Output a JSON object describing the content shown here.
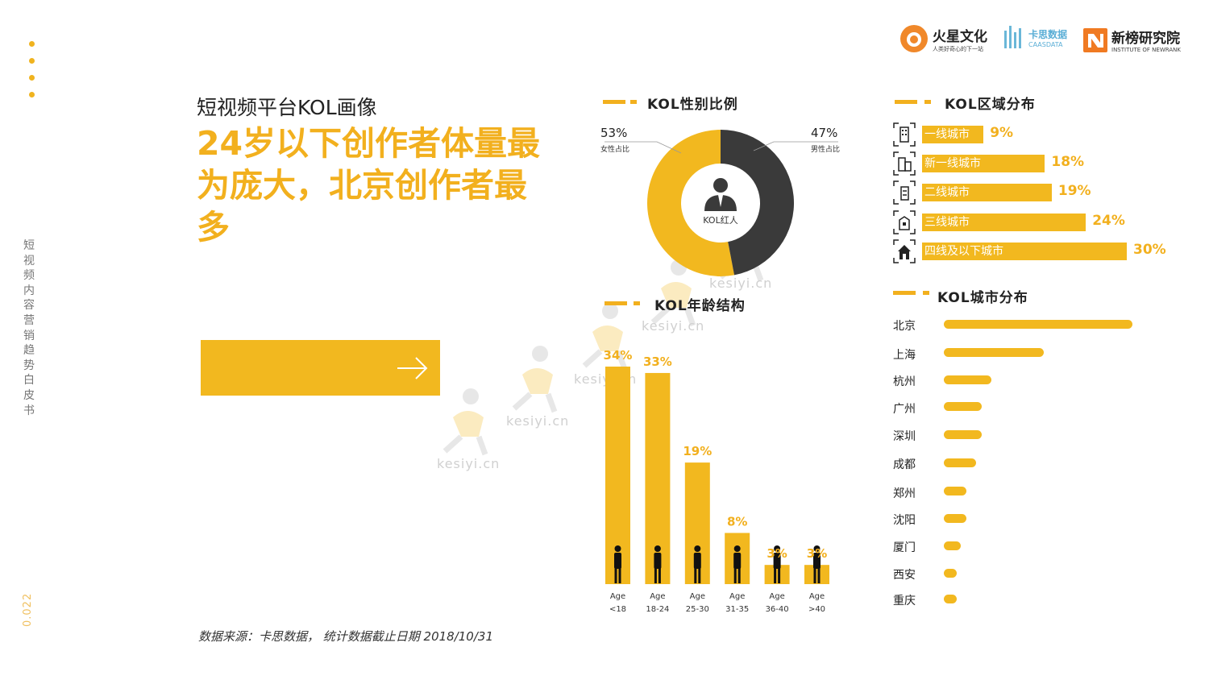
{
  "brand": {
    "logo1_name": "火星文化",
    "logo1_tagline": "人类好奇心的下一站",
    "logo2_name": "卡思数据",
    "logo2_tagline": "CAASDATA",
    "logo3_name": "新榜研究院",
    "logo3_tagline": "INSTITUTE OF NEWRANK"
  },
  "sidebar": {
    "vertical_title": "短视频内容营销趋势白皮书",
    "page_number": "0.022"
  },
  "header": {
    "subtitle": "短视频平台KOL画像",
    "headline": "24岁以下创作者体量最为庞大，北京创作者最多"
  },
  "gender": {
    "section_title": "KOL性别比例",
    "center_label": "KOL红人",
    "female_pct": "53%",
    "female_label": "女性占比",
    "male_pct": "47%",
    "male_label": "男性占比"
  },
  "region": {
    "section_title": "KOL区域分布",
    "items": [
      {
        "label": "一线城市",
        "pct": "9%",
        "value": 9
      },
      {
        "label": "新一线城市",
        "pct": "18%",
        "value": 18
      },
      {
        "label": "二线城市",
        "pct": "19%",
        "value": 19
      },
      {
        "label": "三线城市",
        "pct": "24%",
        "value": 24
      },
      {
        "label": "四线及以下城市",
        "pct": "30%",
        "value": 30
      }
    ]
  },
  "city": {
    "section_title": "KOL城市分布",
    "items": [
      "北京",
      "上海",
      "杭州",
      "广州",
      "深圳",
      "成都",
      "郑州",
      "沈阳",
      "厦门",
      "西安",
      "重庆"
    ]
  },
  "age": {
    "section_title": "KOL年龄结构"
  },
  "watermark": "kesiyi.cn",
  "footer": {
    "source": "数据来源：卡思数据， 统计数据截止日期 2018/10/31"
  },
  "colors": {
    "accent": "#f2b81f",
    "accent_text": "#f2b01e",
    "dark": "#3a3a3a"
  },
  "chart_data": [
    {
      "type": "pie",
      "title": "KOL性别比例",
      "categories": [
        "女性占比",
        "男性占比"
      ],
      "values": [
        53,
        47
      ],
      "colors": [
        "#f2b81f",
        "#3a3a3a"
      ]
    },
    {
      "type": "bar",
      "title": "KOL区域分布",
      "categories": [
        "一线城市",
        "新一线城市",
        "二线城市",
        "三线城市",
        "四线及以下城市"
      ],
      "values": [
        9,
        18,
        19,
        24,
        30
      ],
      "unit": "%"
    },
    {
      "type": "bar",
      "title": "KOL年龄结构",
      "categories": [
        "Age <18",
        "Age 18-24",
        "Age 25-30",
        "Age 31-35",
        "Age 36-40",
        "Age >40"
      ],
      "tick_top": [
        "Age",
        "Age",
        "Age",
        "Age",
        "Age",
        "Age"
      ],
      "tick_bottom": [
        "<18",
        "18-24",
        "25-30",
        "31-35",
        "36-40",
        ">40"
      ],
      "values": [
        34,
        33,
        19,
        8,
        3,
        3
      ],
      "labels": [
        "34%",
        "33%",
        "19%",
        "8%",
        "3%",
        "3%"
      ],
      "ylim": [
        0,
        34
      ]
    },
    {
      "type": "bar",
      "title": "KOL城市分布",
      "categories": [
        "北京",
        "上海",
        "杭州",
        "广州",
        "深圳",
        "成都",
        "郑州",
        "沈阳",
        "厦门",
        "西安",
        "重庆"
      ],
      "values": [
        100,
        53,
        25,
        20,
        20,
        17,
        12,
        12,
        9,
        7,
        7
      ],
      "note": "relative index estimated from bar lengths; no numeric labels shown"
    }
  ]
}
